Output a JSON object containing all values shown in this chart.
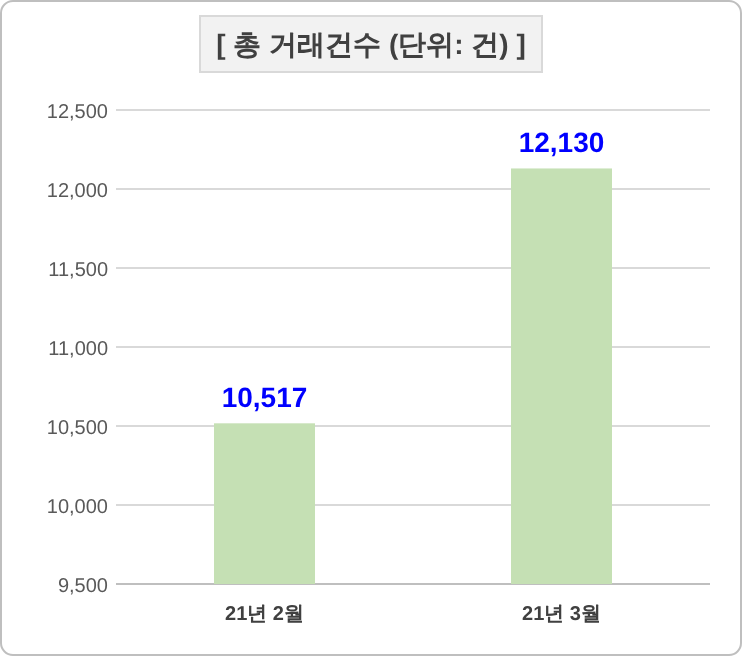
{
  "chart_data": {
    "type": "bar",
    "title": "[ 총 거래건수 (단위: 건) ]",
    "categories": [
      "21년 2월",
      "21년 3월"
    ],
    "values": [
      10517,
      12130
    ],
    "color": "#c5e0b4",
    "value_labels": [
      "10,517",
      "12,130"
    ],
    "ylim": [
      9500,
      12500
    ],
    "yticks": [
      {
        "value": 9500,
        "label": "9,500"
      },
      {
        "value": 10000,
        "label": "10,000"
      },
      {
        "value": 10500,
        "label": "10,500"
      },
      {
        "value": 11000,
        "label": "11,000"
      },
      {
        "value": 11500,
        "label": "11,500"
      },
      {
        "value": 12000,
        "label": "12,000"
      },
      {
        "value": 12500,
        "label": "12,500"
      }
    ],
    "grid": true
  }
}
